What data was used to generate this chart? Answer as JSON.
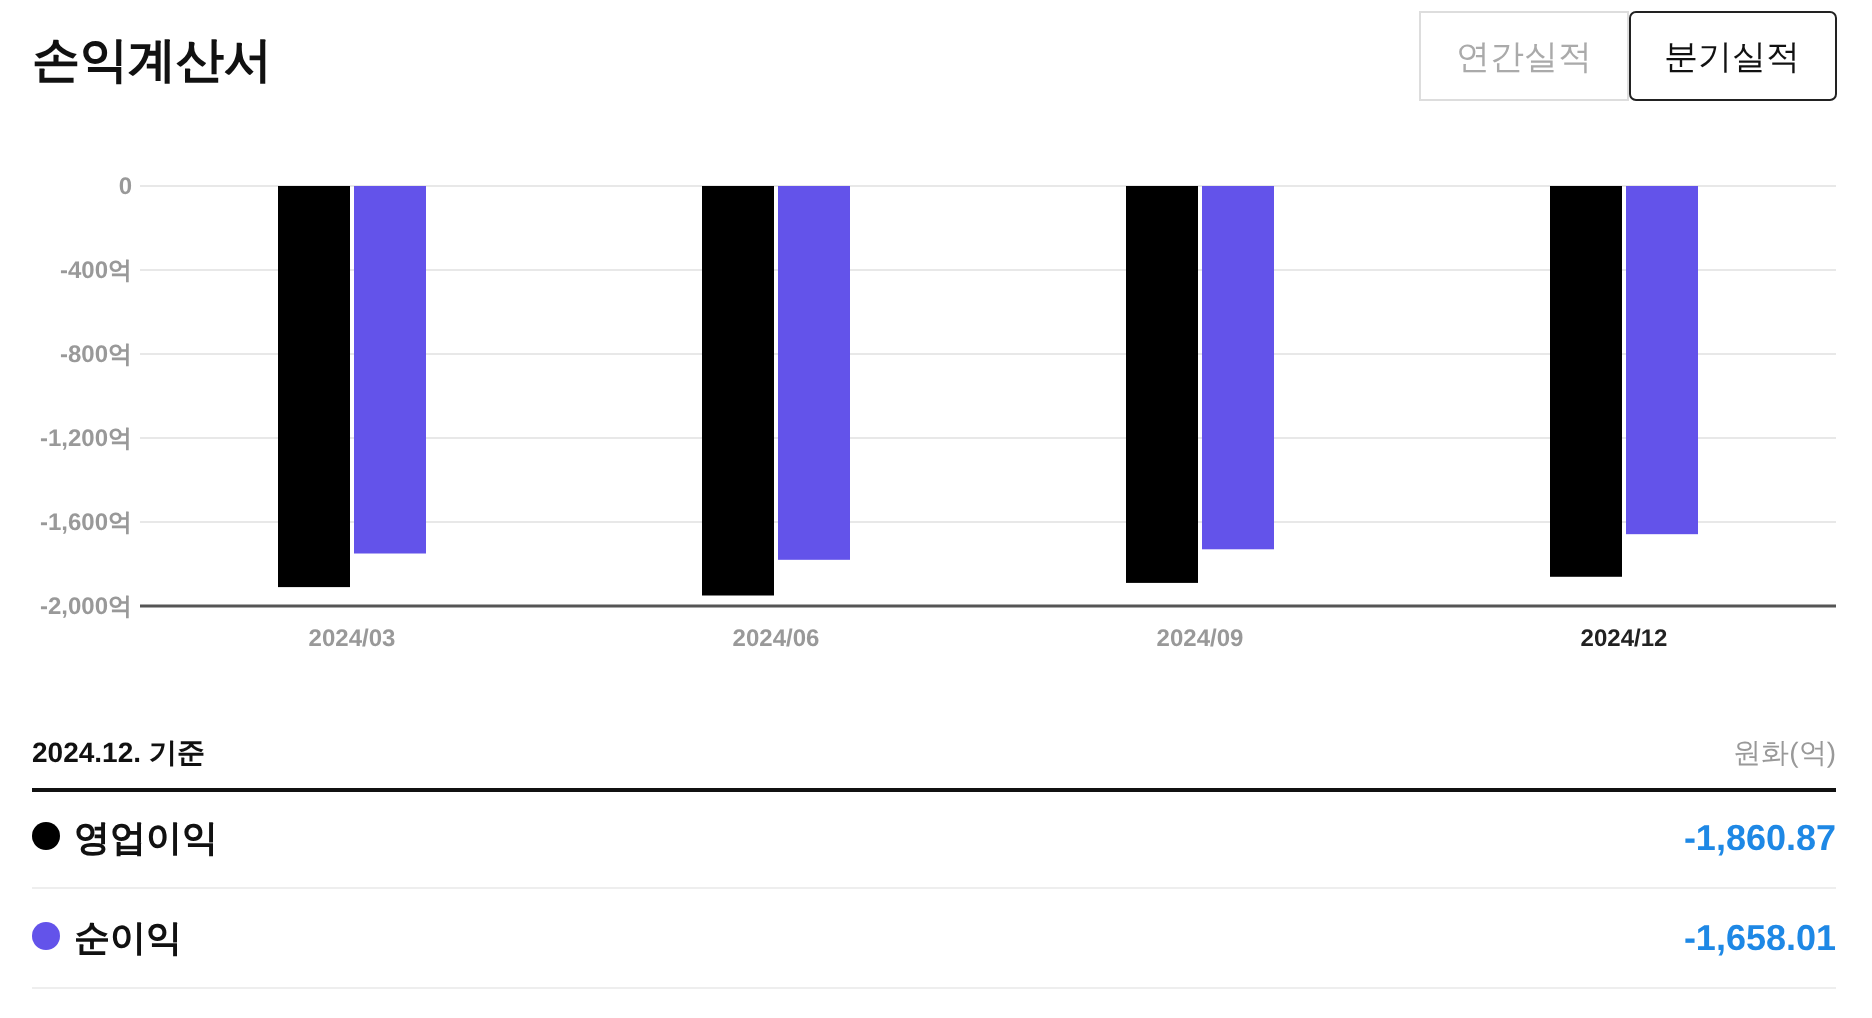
{
  "chart_data": {
    "type": "bar",
    "title": "손익계산서",
    "categories": [
      "2024/03",
      "2024/06",
      "2024/09",
      "2024/12"
    ],
    "series": [
      {
        "name": "영업이익",
        "color": "#000000",
        "values": [
          -1910,
          -1950,
          -1890,
          -1860.87
        ]
      },
      {
        "name": "순이익",
        "color": "#6353ea",
        "values": [
          -1750,
          -1780,
          -1730,
          -1658.01
        ]
      }
    ],
    "ylim": [
      -2000,
      0
    ],
    "yticks": [
      {
        "value": 0,
        "label": "0"
      },
      {
        "value": -400,
        "label": "-400억"
      },
      {
        "value": -800,
        "label": "-800억"
      },
      {
        "value": -1200,
        "label": "-1,200억"
      },
      {
        "value": -1600,
        "label": "-1,600억"
      },
      {
        "value": -2000,
        "label": "-2,000억"
      }
    ],
    "grid": "y",
    "legend": "bottom",
    "annotations": [
      "연간실적",
      "분기실적",
      "2024.12. 기준",
      "원화(억)",
      "-1,860.87",
      "-1,658.01"
    ]
  }
}
